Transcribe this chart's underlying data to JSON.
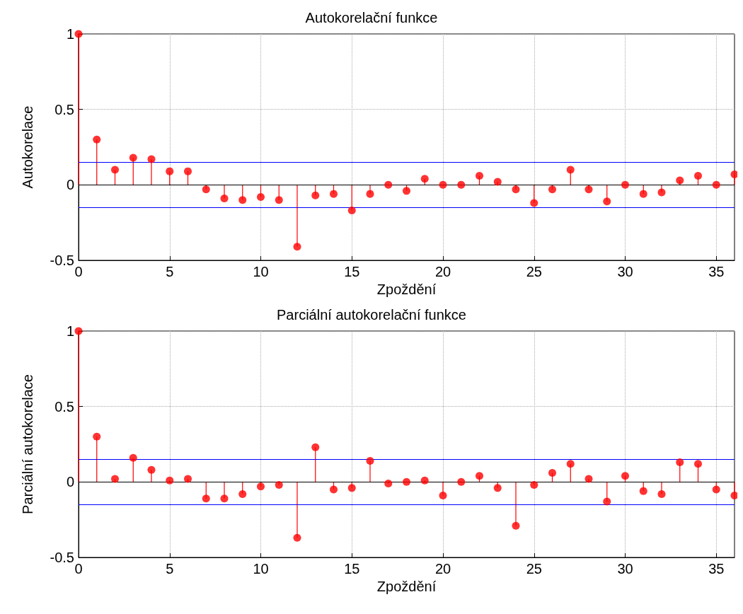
{
  "chart_data": [
    {
      "type": "lollipop",
      "title": "Autokorelační funkce",
      "xlabel": "Zpoždění",
      "ylabel": "Autokorelace",
      "x": [
        0,
        1,
        2,
        3,
        4,
        5,
        6,
        7,
        8,
        9,
        10,
        11,
        12,
        13,
        14,
        15,
        16,
        17,
        18,
        19,
        20,
        21,
        22,
        23,
        24,
        25,
        26,
        27,
        28,
        29,
        30,
        31,
        32,
        33,
        34,
        35,
        36
      ],
      "series": [
        {
          "color": "#ff0000",
          "values": [
            1,
            0.3,
            0.1,
            0.18,
            0.17,
            0.09,
            0.09,
            -0.03,
            -0.09,
            -0.1,
            -0.08,
            -0.1,
            -0.41,
            -0.07,
            -0.06,
            -0.17,
            -0.06,
            0,
            -0.04,
            0.04,
            0,
            0,
            0.06,
            0.02,
            -0.03,
            -0.12,
            -0.03,
            0.1,
            -0.03,
            -0.11,
            0,
            -0.06,
            -0.05,
            0.03,
            0.06,
            0,
            0.07
          ]
        }
      ],
      "xlim": [
        0,
        36
      ],
      "xticks": [
        0,
        5,
        10,
        15,
        20,
        25,
        30,
        35
      ],
      "ylim": [
        -0.5,
        1
      ],
      "yticks": [
        -0.5,
        0,
        0.5,
        1
      ],
      "grid": true,
      "marker": "circle",
      "ref_lines": [
        {
          "axis": "y",
          "value": 0.15,
          "color": "#0000ff"
        },
        {
          "axis": "y",
          "value": -0.15,
          "color": "#0000ff"
        }
      ]
    },
    {
      "type": "lollipop",
      "title": "Parciální autokorelační funkce",
      "xlabel": "Zpoždění",
      "ylabel": "Parciální autokorelace",
      "x": [
        0,
        1,
        2,
        3,
        4,
        5,
        6,
        7,
        8,
        9,
        10,
        11,
        12,
        13,
        14,
        15,
        16,
        17,
        18,
        19,
        20,
        21,
        22,
        23,
        24,
        25,
        26,
        27,
        28,
        29,
        30,
        31,
        32,
        33,
        34,
        35,
        36
      ],
      "series": [
        {
          "color": "#ff0000",
          "values": [
            1,
            0.3,
            0.02,
            0.16,
            0.08,
            0.01,
            0.02,
            -0.11,
            -0.11,
            -0.08,
            -0.03,
            -0.02,
            -0.37,
            0.23,
            -0.05,
            -0.04,
            0.14,
            -0.01,
            0,
            0.01,
            -0.09,
            0,
            0.04,
            -0.04,
            -0.29,
            -0.02,
            0.06,
            0.12,
            0.02,
            -0.13,
            0.04,
            -0.06,
            -0.08,
            0.13,
            0.12,
            -0.05,
            -0.09
          ]
        }
      ],
      "xlim": [
        0,
        36
      ],
      "xticks": [
        0,
        5,
        10,
        15,
        20,
        25,
        30,
        35
      ],
      "ylim": [
        -0.5,
        1
      ],
      "yticks": [
        -0.5,
        0,
        0.5,
        1
      ],
      "grid": true,
      "marker": "circle",
      "ref_lines": [
        {
          "axis": "y",
          "value": 0.15,
          "color": "#0000ff"
        },
        {
          "axis": "y",
          "value": -0.15,
          "color": "#0000ff"
        }
      ]
    }
  ]
}
